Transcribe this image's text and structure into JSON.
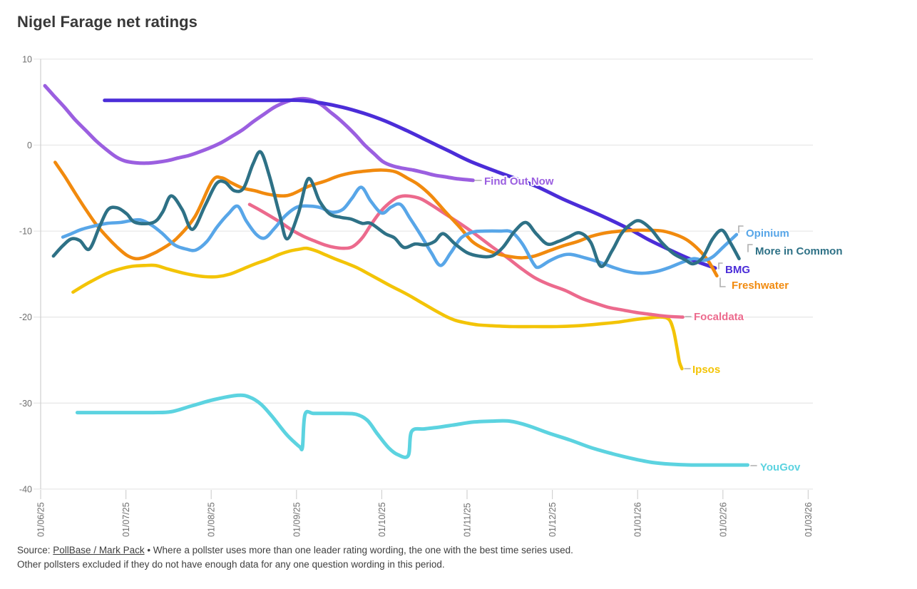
{
  "title": "Nigel Farage net ratings",
  "source": {
    "prefix": "Source: ",
    "link": "PollBase / Mark Pack",
    "line1_rest": " • Where a pollster uses more than one leader rating wording, the one with the best time series used.",
    "line2": "Other pollsters excluded if they do not have enough data for any one question wording in this period."
  },
  "chart_data": {
    "type": "line",
    "title": "Nigel Farage net ratings",
    "x_axis": {
      "unit": "months since 01/06/25",
      "tick_labels": [
        "01/06/25",
        "01/07/25",
        "01/08/25",
        "01/09/25",
        "01/10/25",
        "01/11/25",
        "01/12/25",
        "01/01/26",
        "01/02/26",
        "01/03/26"
      ]
    },
    "y_axis": {
      "ticks": [
        10,
        0,
        -10,
        -20,
        -30,
        -40
      ],
      "range": [
        -40,
        10
      ]
    },
    "grid": "horizontal",
    "legend_position": "line-end-labels",
    "series": [
      {
        "name": "find_out_now",
        "label": "Find Out Now",
        "color": "#9b5fe0",
        "x": [
          0.05,
          0.15,
          0.28,
          0.4,
          0.53,
          0.65,
          0.78,
          0.89,
          0.99,
          1.11,
          1.24,
          1.36,
          1.49,
          1.61,
          1.74,
          1.86,
          1.99,
          2.12,
          2.24,
          2.37,
          2.49,
          2.62,
          2.74,
          2.87,
          2.97,
          3.08,
          3.19,
          3.29,
          3.39,
          3.49,
          3.6,
          3.7,
          3.8,
          3.91,
          4.01,
          4.12,
          4.25,
          4.37,
          4.5,
          4.62,
          4.75,
          4.87,
          4.97,
          5.07
        ],
        "y": [
          6.9,
          5.8,
          4.4,
          3.0,
          1.7,
          0.5,
          -0.6,
          -1.4,
          -1.85,
          -2.05,
          -2.1,
          -2.0,
          -1.8,
          -1.5,
          -1.2,
          -0.8,
          -0.3,
          0.3,
          1.0,
          1.8,
          2.7,
          3.6,
          4.4,
          5.0,
          5.3,
          5.4,
          5.2,
          4.7,
          3.9,
          3.1,
          2.1,
          1.1,
          0.0,
          -1.0,
          -1.9,
          -2.4,
          -2.7,
          -2.9,
          -3.2,
          -3.5,
          -3.7,
          -3.9,
          -4.0,
          -4.1
        ]
      },
      {
        "name": "bmg",
        "label": "BMG",
        "color": "#4b2dd8",
        "x": [
          0.75,
          1.2,
          1.7,
          2.2,
          2.7,
          3.04,
          3.29,
          3.54,
          3.79,
          4.04,
          4.29,
          4.54,
          4.79,
          5.04,
          5.38,
          5.79,
          6.13,
          6.55,
          6.91,
          7.13,
          7.38,
          7.63,
          7.91
        ],
        "y": [
          5.2,
          5.2,
          5.2,
          5.2,
          5.2,
          5.2,
          4.9,
          4.4,
          3.7,
          2.8,
          1.7,
          0.5,
          -0.7,
          -1.9,
          -3.2,
          -4.7,
          -6.3,
          -8.1,
          -9.8,
          -11.0,
          -12.2,
          -13.3,
          -14.3
        ]
      },
      {
        "name": "opinium",
        "label": "Opinium",
        "color": "#58a6e8",
        "x": [
          0.26,
          0.36,
          0.48,
          0.63,
          0.78,
          0.93,
          1.05,
          1.17,
          1.3,
          1.43,
          1.57,
          1.71,
          1.82,
          1.95,
          2.07,
          2.2,
          2.31,
          2.41,
          2.53,
          2.63,
          2.74,
          2.87,
          3.01,
          3.16,
          3.29,
          3.41,
          3.54,
          3.65,
          3.76,
          3.87,
          4.0,
          4.11,
          4.22,
          4.33,
          4.46,
          4.58,
          4.69,
          4.81,
          4.93,
          5.07,
          5.21,
          5.38,
          5.52,
          5.65,
          5.78,
          5.84,
          5.96,
          6.09,
          6.21,
          6.38,
          6.55,
          6.71,
          6.88,
          7.05,
          7.22,
          7.38,
          7.53,
          7.66,
          7.78,
          7.88,
          8.01,
          8.16
        ],
        "y": [
          -10.7,
          -10.3,
          -9.8,
          -9.4,
          -9.1,
          -9.0,
          -8.8,
          -8.7,
          -9.3,
          -10.3,
          -11.6,
          -12.1,
          -12.2,
          -11.2,
          -9.5,
          -8.0,
          -7.1,
          -8.8,
          -10.4,
          -10.8,
          -9.7,
          -8.2,
          -7.2,
          -7.1,
          -7.3,
          -7.8,
          -7.5,
          -6.2,
          -4.9,
          -6.5,
          -7.9,
          -7.2,
          -6.9,
          -8.5,
          -10.5,
          -12.5,
          -14.0,
          -12.5,
          -10.8,
          -10.1,
          -10.0,
          -10.0,
          -10.1,
          -11.5,
          -13.8,
          -14.2,
          -13.5,
          -12.9,
          -12.7,
          -13.1,
          -13.6,
          -14.2,
          -14.7,
          -14.9,
          -14.7,
          -14.2,
          -13.6,
          -13.2,
          -13.4,
          -13.0,
          -11.8,
          -10.4
        ]
      },
      {
        "name": "more_in_common",
        "label": "More in Common",
        "color": "#2e7186",
        "x": [
          0.15,
          0.26,
          0.36,
          0.46,
          0.57,
          0.69,
          0.79,
          0.9,
          1.01,
          1.11,
          1.32,
          1.43,
          1.53,
          1.66,
          1.78,
          1.93,
          2.06,
          2.16,
          2.27,
          2.38,
          2.49,
          2.58,
          2.68,
          2.8,
          2.89,
          3.02,
          3.14,
          3.27,
          3.39,
          3.52,
          3.64,
          3.77,
          3.87,
          4.04,
          4.15,
          4.26,
          4.39,
          4.51,
          4.62,
          4.72,
          4.86,
          5.0,
          5.14,
          5.29,
          5.42,
          5.56,
          5.69,
          5.81,
          5.94,
          6.07,
          6.19,
          6.32,
          6.45,
          6.57,
          6.7,
          6.81,
          6.92,
          7.02,
          7.15,
          7.28,
          7.42,
          7.55,
          7.65,
          7.76,
          7.88,
          7.99,
          8.09,
          8.19
        ],
        "y": [
          -12.9,
          -11.7,
          -10.9,
          -11.1,
          -12.1,
          -9.5,
          -7.5,
          -7.3,
          -8.0,
          -9.0,
          -9.0,
          -7.8,
          -5.9,
          -7.5,
          -9.8,
          -7.0,
          -4.5,
          -4.3,
          -5.3,
          -5.0,
          -2.2,
          -0.8,
          -3.5,
          -8.0,
          -10.9,
          -8.0,
          -3.9,
          -6.5,
          -8.0,
          -8.4,
          -8.6,
          -9.1,
          -9.1,
          -10.3,
          -10.8,
          -11.9,
          -11.5,
          -11.6,
          -11.2,
          -10.3,
          -11.5,
          -12.5,
          -12.9,
          -12.9,
          -11.9,
          -10.0,
          -9.0,
          -10.3,
          -11.5,
          -11.2,
          -10.7,
          -10.2,
          -11.3,
          -14.1,
          -12.3,
          -10.3,
          -9.2,
          -8.8,
          -9.7,
          -11.3,
          -12.6,
          -13.3,
          -13.8,
          -13.1,
          -10.9,
          -9.9,
          -11.4,
          -13.2
        ]
      },
      {
        "name": "freshwater",
        "label": "Freshwater",
        "color": "#f18a0e",
        "x": [
          0.17,
          0.28,
          0.4,
          0.53,
          0.65,
          0.78,
          0.9,
          1.01,
          1.11,
          1.2,
          1.3,
          1.4,
          1.59,
          1.81,
          2.01,
          2.12,
          2.24,
          2.37,
          2.51,
          2.66,
          2.83,
          2.95,
          3.14,
          3.33,
          3.49,
          3.66,
          3.83,
          4.0,
          4.16,
          4.31,
          4.43,
          4.58,
          4.75,
          4.92,
          5.06,
          5.21,
          5.38,
          5.53,
          5.65,
          5.79,
          5.96,
          6.13,
          6.3,
          6.46,
          6.63,
          6.8,
          6.96,
          7.13,
          7.3,
          7.47,
          7.59,
          7.72,
          7.83,
          7.93
        ],
        "y": [
          -2.0,
          -3.6,
          -5.5,
          -7.5,
          -9.2,
          -10.7,
          -11.9,
          -12.8,
          -13.2,
          -13.1,
          -12.7,
          -12.2,
          -10.9,
          -8.3,
          -4.2,
          -3.8,
          -4.4,
          -5.0,
          -5.3,
          -5.7,
          -5.9,
          -5.7,
          -4.8,
          -4.2,
          -3.6,
          -3.2,
          -3.0,
          -2.9,
          -3.1,
          -3.9,
          -4.6,
          -5.9,
          -7.8,
          -9.6,
          -11.2,
          -12.1,
          -12.7,
          -13.0,
          -13.1,
          -12.9,
          -12.3,
          -11.7,
          -11.2,
          -10.6,
          -10.2,
          -10.0,
          -9.9,
          -9.9,
          -10.0,
          -10.5,
          -11.1,
          -12.2,
          -13.5,
          -15.2
        ]
      },
      {
        "name": "focaldata",
        "label": "Focaldata",
        "color": "#ec6a8d",
        "x": [
          2.45,
          2.58,
          2.7,
          2.83,
          2.95,
          3.08,
          3.2,
          3.33,
          3.45,
          3.56,
          3.66,
          3.77,
          3.87,
          3.98,
          4.08,
          4.18,
          4.27,
          4.37,
          4.47,
          4.62,
          4.79,
          4.96,
          5.13,
          5.29,
          5.46,
          5.63,
          5.79,
          5.96,
          6.15,
          6.34,
          6.51,
          6.67,
          6.84,
          7.01,
          7.17,
          7.34,
          7.53
        ],
        "y": [
          -6.9,
          -7.6,
          -8.3,
          -9.1,
          -9.9,
          -10.6,
          -11.1,
          -11.6,
          -11.9,
          -12.0,
          -11.8,
          -10.8,
          -9.3,
          -7.8,
          -6.8,
          -6.1,
          -5.9,
          -6.0,
          -6.3,
          -7.2,
          -8.3,
          -9.4,
          -10.6,
          -11.8,
          -13.0,
          -14.3,
          -15.4,
          -16.2,
          -16.9,
          -17.8,
          -18.4,
          -18.9,
          -19.2,
          -19.5,
          -19.7,
          -19.9,
          -20.0
        ]
      },
      {
        "name": "ipsos",
        "label": "Ipsos",
        "color": "#f3c407",
        "x": [
          0.38,
          0.51,
          0.64,
          0.78,
          0.93,
          1.07,
          1.22,
          1.35,
          1.49,
          1.64,
          1.78,
          1.93,
          2.07,
          2.22,
          2.37,
          2.52,
          2.66,
          2.8,
          2.93,
          3.04,
          3.12,
          3.23,
          3.35,
          3.47,
          3.6,
          3.72,
          3.85,
          3.98,
          4.11,
          4.23,
          4.36,
          4.48,
          4.62,
          4.77,
          4.87,
          5.0,
          5.13,
          5.29,
          5.54,
          5.79,
          6.05,
          6.3,
          6.55,
          6.76,
          6.96,
          7.13,
          7.28,
          7.37,
          7.42,
          7.46,
          7.49,
          7.52
        ],
        "y": [
          -17.1,
          -16.3,
          -15.6,
          -14.9,
          -14.4,
          -14.1,
          -14.0,
          -14.0,
          -14.4,
          -14.8,
          -15.1,
          -15.3,
          -15.3,
          -15.0,
          -14.4,
          -13.8,
          -13.3,
          -12.7,
          -12.3,
          -12.1,
          -12.0,
          -12.3,
          -12.8,
          -13.3,
          -13.8,
          -14.3,
          -15.0,
          -15.7,
          -16.4,
          -17.0,
          -17.7,
          -18.4,
          -19.2,
          -20.0,
          -20.4,
          -20.7,
          -20.9,
          -21.0,
          -21.1,
          -21.1,
          -21.1,
          -21.0,
          -20.8,
          -20.6,
          -20.3,
          -20.1,
          -20.0,
          -20.3,
          -21.5,
          -23.5,
          -25.2,
          -26.0
        ]
      },
      {
        "name": "yougov",
        "label": "YouGov",
        "color": "#5cd3e0",
        "x": [
          0.43,
          0.69,
          0.99,
          1.32,
          1.53,
          1.78,
          2.03,
          2.31,
          2.45,
          2.58,
          2.71,
          2.87,
          2.97,
          3.04,
          3.07,
          3.1,
          3.2,
          3.37,
          3.54,
          3.7,
          3.83,
          3.95,
          4.08,
          4.19,
          4.31,
          4.35,
          4.5,
          4.67,
          4.87,
          5.08,
          5.29,
          5.5,
          5.71,
          5.96,
          6.21,
          6.46,
          6.71,
          6.96,
          7.17,
          7.38,
          7.63,
          7.88,
          8.09,
          8.29
        ],
        "y": [
          -31.1,
          -31.1,
          -31.1,
          -31.1,
          -31.0,
          -30.3,
          -29.6,
          -29.1,
          -29.3,
          -30.1,
          -31.5,
          -33.5,
          -34.5,
          -35.1,
          -35.1,
          -31.3,
          -31.2,
          -31.2,
          -31.2,
          -31.3,
          -32.0,
          -33.6,
          -35.2,
          -36.0,
          -36.1,
          -33.3,
          -33.0,
          -32.8,
          -32.5,
          -32.2,
          -32.1,
          -32.1,
          -32.6,
          -33.5,
          -34.3,
          -35.2,
          -35.9,
          -36.5,
          -36.9,
          -37.1,
          -37.2,
          -37.2,
          -37.2,
          -37.2
        ]
      }
    ]
  },
  "colors": {
    "title_text": "#383838",
    "axis_text": "#6f6f6f",
    "gridline": "#e8e8e8",
    "axis_spine": "#d2d2d2",
    "connector": "#aeaeae",
    "source_text": "#3f3f3f"
  }
}
